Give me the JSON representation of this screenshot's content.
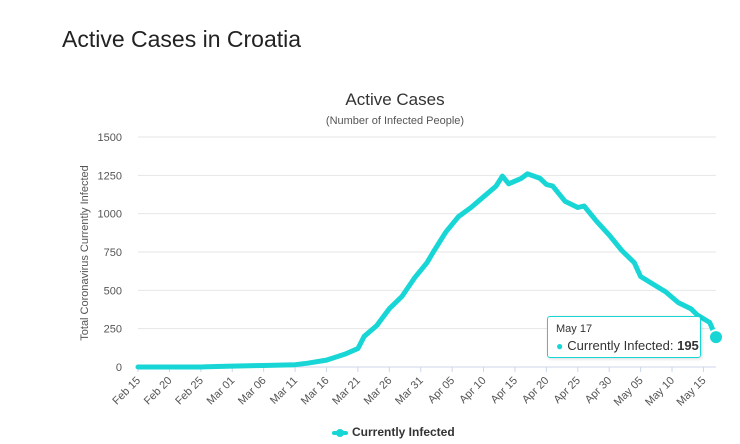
{
  "page": {
    "heading": "Active Cases in Croatia"
  },
  "chart_data": {
    "type": "line",
    "title": "Active Cases",
    "subtitle": "(Number of Infected People)",
    "ylabel": "Total Coronavirus Currently Infected",
    "xlabel": "",
    "ylim": [
      0,
      1500
    ],
    "yticks": [
      0,
      250,
      500,
      750,
      1000,
      1250,
      1500
    ],
    "x_tick_labels": [
      "Feb 15",
      "Feb 20",
      "Feb 25",
      "Mar 01",
      "Mar 06",
      "Mar 11",
      "Mar 16",
      "Mar 21",
      "Mar 26",
      "Mar 31",
      "Apr 05",
      "Apr 10",
      "Apr 15",
      "Apr 20",
      "Apr 25",
      "Apr 30",
      "May 05",
      "May 10",
      "May 15"
    ],
    "x_start": "2020-02-15",
    "x_end": "2020-05-17",
    "grid": true,
    "legend_position": "bottom",
    "series": [
      {
        "name": "Currently Infected",
        "color": "#19d6d6",
        "points": [
          [
            "Feb 15",
            0
          ],
          [
            "Feb 25",
            0
          ],
          [
            "Feb 26",
            2
          ],
          [
            "Mar 01",
            6
          ],
          [
            "Mar 06",
            10
          ],
          [
            "Mar 11",
            15
          ],
          [
            "Mar 13",
            25
          ],
          [
            "Mar 16",
            45
          ],
          [
            "Mar 19",
            85
          ],
          [
            "Mar 21",
            120
          ],
          [
            "Mar 22",
            200
          ],
          [
            "Mar 24",
            270
          ],
          [
            "Mar 26",
            380
          ],
          [
            "Mar 28",
            460
          ],
          [
            "Mar 30",
            580
          ],
          [
            "Apr 01",
            680
          ],
          [
            "Apr 02",
            750
          ],
          [
            "Apr 04",
            880
          ],
          [
            "Apr 06",
            980
          ],
          [
            "Apr 08",
            1040
          ],
          [
            "Apr 10",
            1110
          ],
          [
            "Apr 12",
            1180
          ],
          [
            "Apr 13",
            1245
          ],
          [
            "Apr 14",
            1195
          ],
          [
            "Apr 16",
            1230
          ],
          [
            "Apr 17",
            1260
          ],
          [
            "Apr 19",
            1230
          ],
          [
            "Apr 20",
            1190
          ],
          [
            "Apr 21",
            1180
          ],
          [
            "Apr 23",
            1080
          ],
          [
            "Apr 25",
            1040
          ],
          [
            "Apr 26",
            1050
          ],
          [
            "Apr 28",
            950
          ],
          [
            "Apr 30",
            860
          ],
          [
            "May 02",
            760
          ],
          [
            "May 04",
            680
          ],
          [
            "May 05",
            590
          ],
          [
            "May 07",
            540
          ],
          [
            "May 09",
            490
          ],
          [
            "May 11",
            420
          ],
          [
            "May 13",
            380
          ],
          [
            "May 14",
            340
          ],
          [
            "May 16",
            290
          ],
          [
            "May 17",
            195
          ]
        ]
      }
    ],
    "tooltip": {
      "date": "May 17",
      "series": "Currently Infected",
      "value": "195"
    }
  }
}
